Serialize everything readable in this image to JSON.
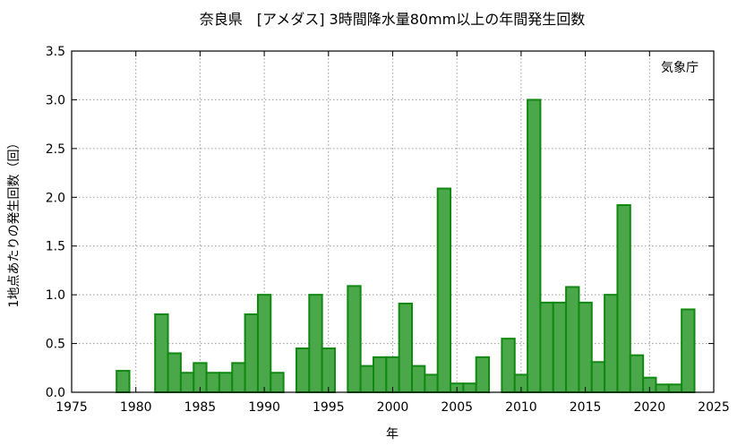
{
  "chart_data": {
    "type": "bar",
    "title": "奈良県　[アメダス] 3時間降水量80mm以上の年間発生回数",
    "xlabel": "年",
    "ylabel": "1地点あたりの発生回数（回）",
    "annotation": "気象庁",
    "xlim": [
      1975,
      2025
    ],
    "ylim": [
      0,
      3.5
    ],
    "x_ticks": [
      1975,
      1980,
      1985,
      1990,
      1995,
      2000,
      2005,
      2010,
      2015,
      2020,
      2025
    ],
    "y_ticks": [
      "0.0",
      "0.5",
      "1.0",
      "1.5",
      "2.0",
      "2.5",
      "3.0",
      "3.5"
    ],
    "grid": true,
    "colors": {
      "bar_fill": "#4aa84a",
      "bar_edge": "#118811"
    },
    "x": [
      1976,
      1977,
      1978,
      1979,
      1980,
      1981,
      1982,
      1983,
      1984,
      1985,
      1986,
      1987,
      1988,
      1989,
      1990,
      1991,
      1992,
      1993,
      1994,
      1995,
      1996,
      1997,
      1998,
      1999,
      2000,
      2001,
      2002,
      2003,
      2004,
      2005,
      2006,
      2007,
      2008,
      2009,
      2010,
      2011,
      2012,
      2013,
      2014,
      2015,
      2016,
      2017,
      2018,
      2019,
      2020,
      2021,
      2022,
      2023
    ],
    "values": [
      0,
      0,
      0,
      0.22,
      0,
      0,
      0.8,
      0.4,
      0.2,
      0.3,
      0.2,
      0.2,
      0.3,
      0.8,
      1.0,
      0.2,
      0,
      0.45,
      1.0,
      0.45,
      0,
      1.09,
      0.27,
      0.36,
      0.36,
      0.91,
      0.27,
      0.18,
      2.09,
      0.09,
      0.09,
      0.36,
      0,
      0.55,
      0.18,
      3.0,
      0.92,
      0.92,
      1.08,
      0.92,
      0.31,
      1.0,
      1.92,
      0.38,
      0.15,
      0.08,
      0.08,
      0.85
    ]
  }
}
